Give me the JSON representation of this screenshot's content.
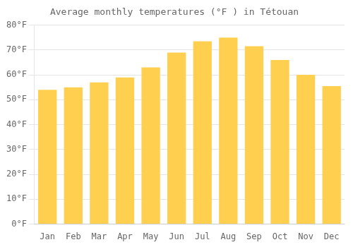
{
  "chart_data": {
    "type": "bar",
    "title": "Average monthly temperatures (°F ) in Tétouan",
    "categories": [
      "Jan",
      "Feb",
      "Mar",
      "Apr",
      "May",
      "Jun",
      "Jul",
      "Aug",
      "Sep",
      "Oct",
      "Nov",
      "Dec"
    ],
    "values": [
      54,
      55,
      57,
      59,
      63,
      69,
      73.5,
      75,
      71.5,
      66,
      60,
      55.5
    ],
    "color": "#FFD050",
    "ylim": [
      0,
      80
    ],
    "yticks": [
      {
        "value": 0,
        "label": "0°F"
      },
      {
        "value": 10,
        "label": "10°F"
      },
      {
        "value": 20,
        "label": "20°F"
      },
      {
        "value": 30,
        "label": "30°F"
      },
      {
        "value": 40,
        "label": "40°F"
      },
      {
        "value": 50,
        "label": "50°F"
      },
      {
        "value": 60,
        "label": "60°F"
      },
      {
        "value": 70,
        "label": "70°F"
      },
      {
        "value": 80,
        "label": "80°F"
      }
    ],
    "grid": true
  }
}
